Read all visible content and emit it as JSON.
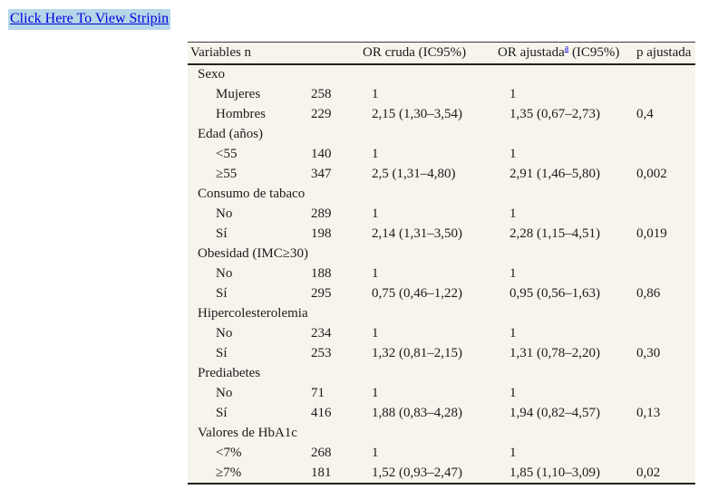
{
  "link": {
    "label": "Click Here To View Stripin"
  },
  "colors": {
    "link_blue": "#0000e0",
    "link_highlight": "#b4d7e8",
    "table_background": "#f7f4ec",
    "rule": "#222222",
    "text": "#1b1b1b"
  },
  "table": {
    "headers": {
      "variables": "Variables n",
      "or_cruda": "OR cruda (IC95%)",
      "or_ajustada_prefix": "OR ajustada",
      "or_ajustada_sup": "a",
      "or_ajustada_suffix": " (IC95%)",
      "p_ajustada": "p ajustada"
    },
    "groups": [
      {
        "label": "Sexo",
        "rows": [
          {
            "label": "Mujeres",
            "n": "258",
            "or_cruda": "1",
            "or_ajustada": "1",
            "p": ""
          },
          {
            "label": "Hombres",
            "n": "229",
            "or_cruda": "2,15 (1,30–3,54)",
            "or_ajustada": "1,35 (0,67–2,73)",
            "p": "0,4"
          }
        ]
      },
      {
        "label": "Edad (años)",
        "rows": [
          {
            "label": "<55",
            "n": "140",
            "or_cruda": "1",
            "or_ajustada": "1",
            "p": ""
          },
          {
            "label": "≥55",
            "n": "347",
            "or_cruda": "2,5 (1,31–4,80)",
            "or_ajustada": "2,91 (1,46–5,80)",
            "p": "0,002"
          }
        ]
      },
      {
        "label": "Consumo de tabaco",
        "rows": [
          {
            "label": "No",
            "n": "289",
            "or_cruda": "1",
            "or_ajustada": "1",
            "p": ""
          },
          {
            "label": "Sí",
            "n": "198",
            "or_cruda": "2,14 (1,31–3,50)",
            "or_ajustada": "2,28 (1,15–4,51)",
            "p": "0,019"
          }
        ]
      },
      {
        "label": "Obesidad (IMC≥30)",
        "rows": [
          {
            "label": "No",
            "n": "188",
            "or_cruda": "1",
            "or_ajustada": "1",
            "p": ""
          },
          {
            "label": "Sí",
            "n": "295",
            "or_cruda": "0,75 (0,46–1,22)",
            "or_ajustada": "0,95 (0,56–1,63)",
            "p": "0,86"
          }
        ]
      },
      {
        "label": "Hipercolesterolemia",
        "rows": [
          {
            "label": "No",
            "n": "234",
            "or_cruda": "1",
            "or_ajustada": "1",
            "p": ""
          },
          {
            "label": "Sí",
            "n": "253",
            "or_cruda": "1,32 (0,81–2,15)",
            "or_ajustada": "1,31 (0,78–2,20)",
            "p": "0,30"
          }
        ]
      },
      {
        "label": "Prediabetes",
        "rows": [
          {
            "label": "No",
            "n": "71",
            "or_cruda": "1",
            "or_ajustada": "1",
            "p": ""
          },
          {
            "label": "Sí",
            "n": "416",
            "or_cruda": "1,88 (0,83–4,28)",
            "or_ajustada": "1,94 (0,82–4,57)",
            "p": "0,13"
          }
        ]
      },
      {
        "label": "Valores de HbA1c",
        "rows": [
          {
            "label": "<7%",
            "n": "268",
            "or_cruda": "1",
            "or_ajustada": "1",
            "p": ""
          },
          {
            "label": "≥7%",
            "n": "181",
            "or_cruda": "1,52 (0,93–2,47)",
            "or_ajustada": "1,85 (1,10–3,09)",
            "p": "0,02"
          }
        ]
      }
    ]
  }
}
